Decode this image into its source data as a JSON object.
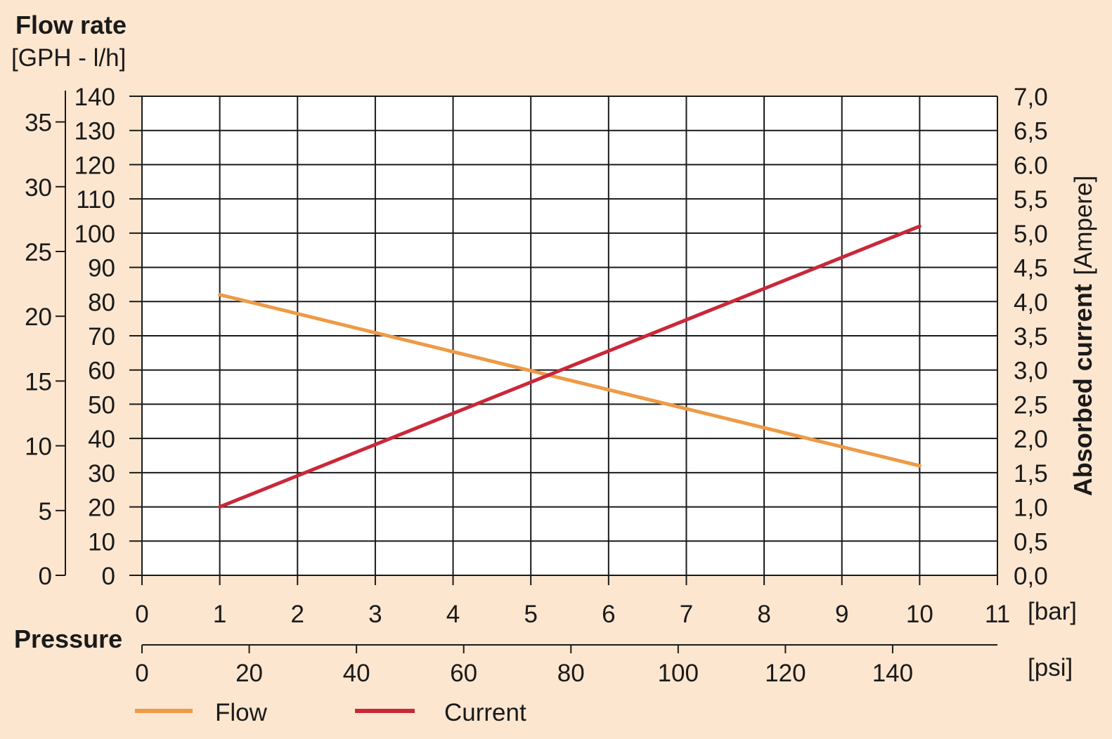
{
  "colors": {
    "background": "#fde6cf",
    "plot_background": "#ffffff",
    "grid": "#1a1a1a",
    "flow": "#ee9a46",
    "current": "#c9283a"
  },
  "chart_data": {
    "type": "line",
    "left_axis_title": "Flow rate",
    "left_axis_unit": "[GPH - l/h]",
    "right_axis_title": "Absorbed current",
    "right_axis_unit": "[Ampere]",
    "x_axis_title": "Pressure",
    "x_unit_bar": "[bar]",
    "x_unit_psi": "[psi]",
    "x_bar": {
      "range": [
        0,
        11
      ],
      "ticks": [
        0,
        1,
        2,
        3,
        4,
        5,
        6,
        7,
        8,
        9,
        10,
        11
      ],
      "labels": [
        "0",
        "1",
        "2",
        "3",
        "4",
        "5",
        "6",
        "7",
        "8",
        "9",
        "10",
        "11"
      ]
    },
    "x_psi": {
      "ticks": [
        0,
        20,
        40,
        60,
        80,
        100,
        120,
        140
      ],
      "labels": [
        "0",
        "20",
        "40",
        "60",
        "80",
        "100",
        "120",
        "140"
      ]
    },
    "y_lh": {
      "range": [
        0,
        140
      ],
      "ticks": [
        0,
        10,
        20,
        30,
        40,
        50,
        60,
        70,
        80,
        90,
        100,
        110,
        120,
        130,
        140
      ],
      "labels": [
        "0",
        "10",
        "20",
        "30",
        "40",
        "50",
        "60",
        "70",
        "80",
        "90",
        "100",
        "110",
        "120",
        "130",
        "140"
      ]
    },
    "y_gph": {
      "ticks": [
        0,
        5,
        10,
        15,
        20,
        25,
        30,
        35
      ],
      "labels": [
        "0",
        "5",
        "10",
        "15",
        "20",
        "25",
        "30",
        "35"
      ]
    },
    "y_ampere": {
      "range": [
        0,
        7
      ],
      "ticks": [
        0,
        0.5,
        1,
        1.5,
        2,
        2.5,
        3,
        3.5,
        4,
        4.5,
        5,
        5.5,
        6,
        6.5,
        7
      ],
      "labels": [
        "0,0",
        "0,5",
        "1,0",
        "1,5",
        "2,0",
        "2,5",
        "3,0",
        "3,5",
        "4,0",
        "4,5",
        "5,0",
        "5,5",
        "6.0",
        "6,5",
        "7,0"
      ]
    },
    "grid": true,
    "legend_position": "bottom",
    "series": [
      {
        "name": "Flow",
        "axis": "left",
        "x": [
          1,
          10
        ],
        "y": [
          82,
          32
        ]
      },
      {
        "name": "Current",
        "axis": "right",
        "x": [
          1,
          10
        ],
        "y": [
          1.0,
          5.1
        ]
      }
    ]
  }
}
